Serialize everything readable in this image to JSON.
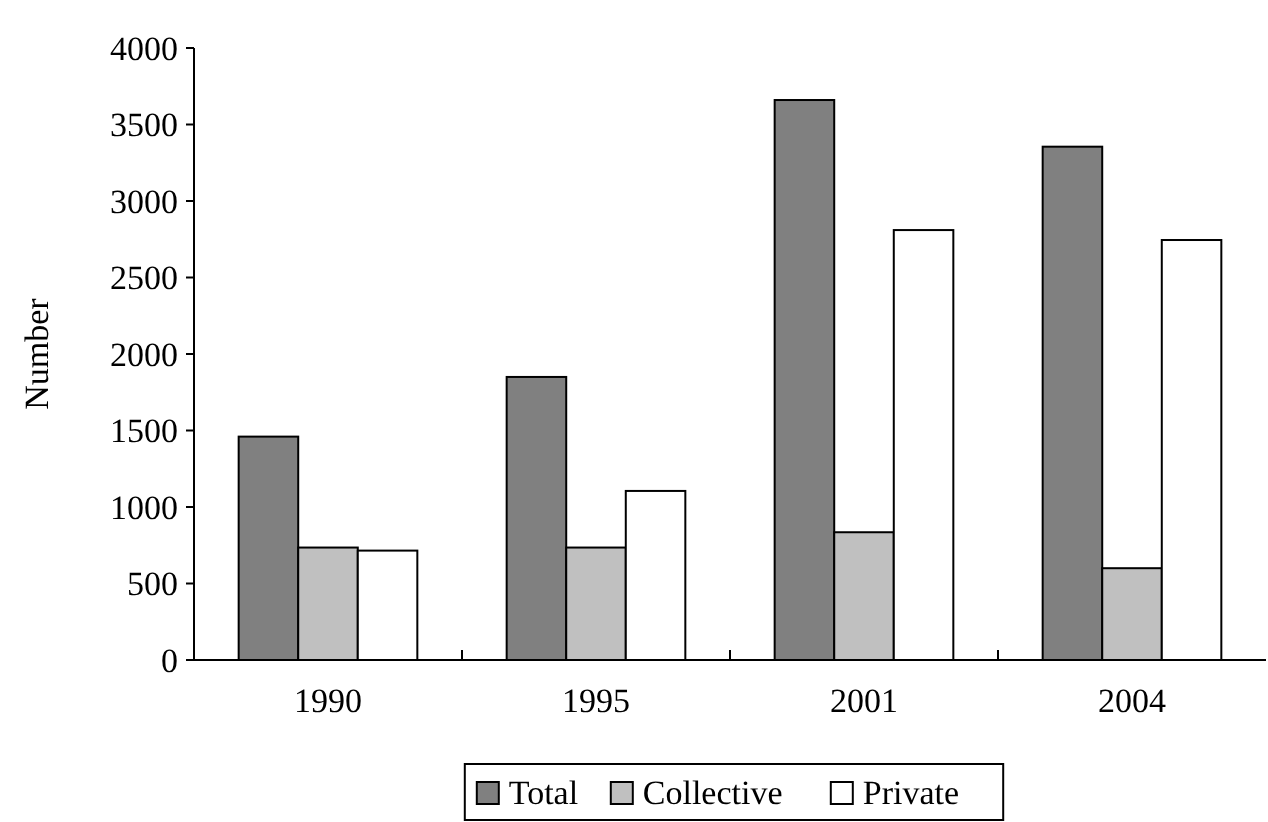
{
  "chart_data": {
    "type": "bar",
    "ylabel": "Number",
    "categories": [
      "1990",
      "1995",
      "2001",
      "2004"
    ],
    "series": [
      {
        "name": "Total",
        "color": "#808080",
        "values": [
          1460,
          1850,
          3660,
          3355
        ]
      },
      {
        "name": "Collective",
        "color": "#c0c0c0",
        "values": [
          735,
          735,
          835,
          600
        ]
      },
      {
        "name": "Private",
        "color": "#ffffff",
        "values": [
          715,
          1105,
          2810,
          2745
        ]
      }
    ],
    "ylim": [
      0,
      4000
    ],
    "yticks": [
      0,
      500,
      1000,
      1500,
      2000,
      2500,
      3000,
      3500,
      4000
    ],
    "grid": false,
    "legend": "bottom"
  }
}
